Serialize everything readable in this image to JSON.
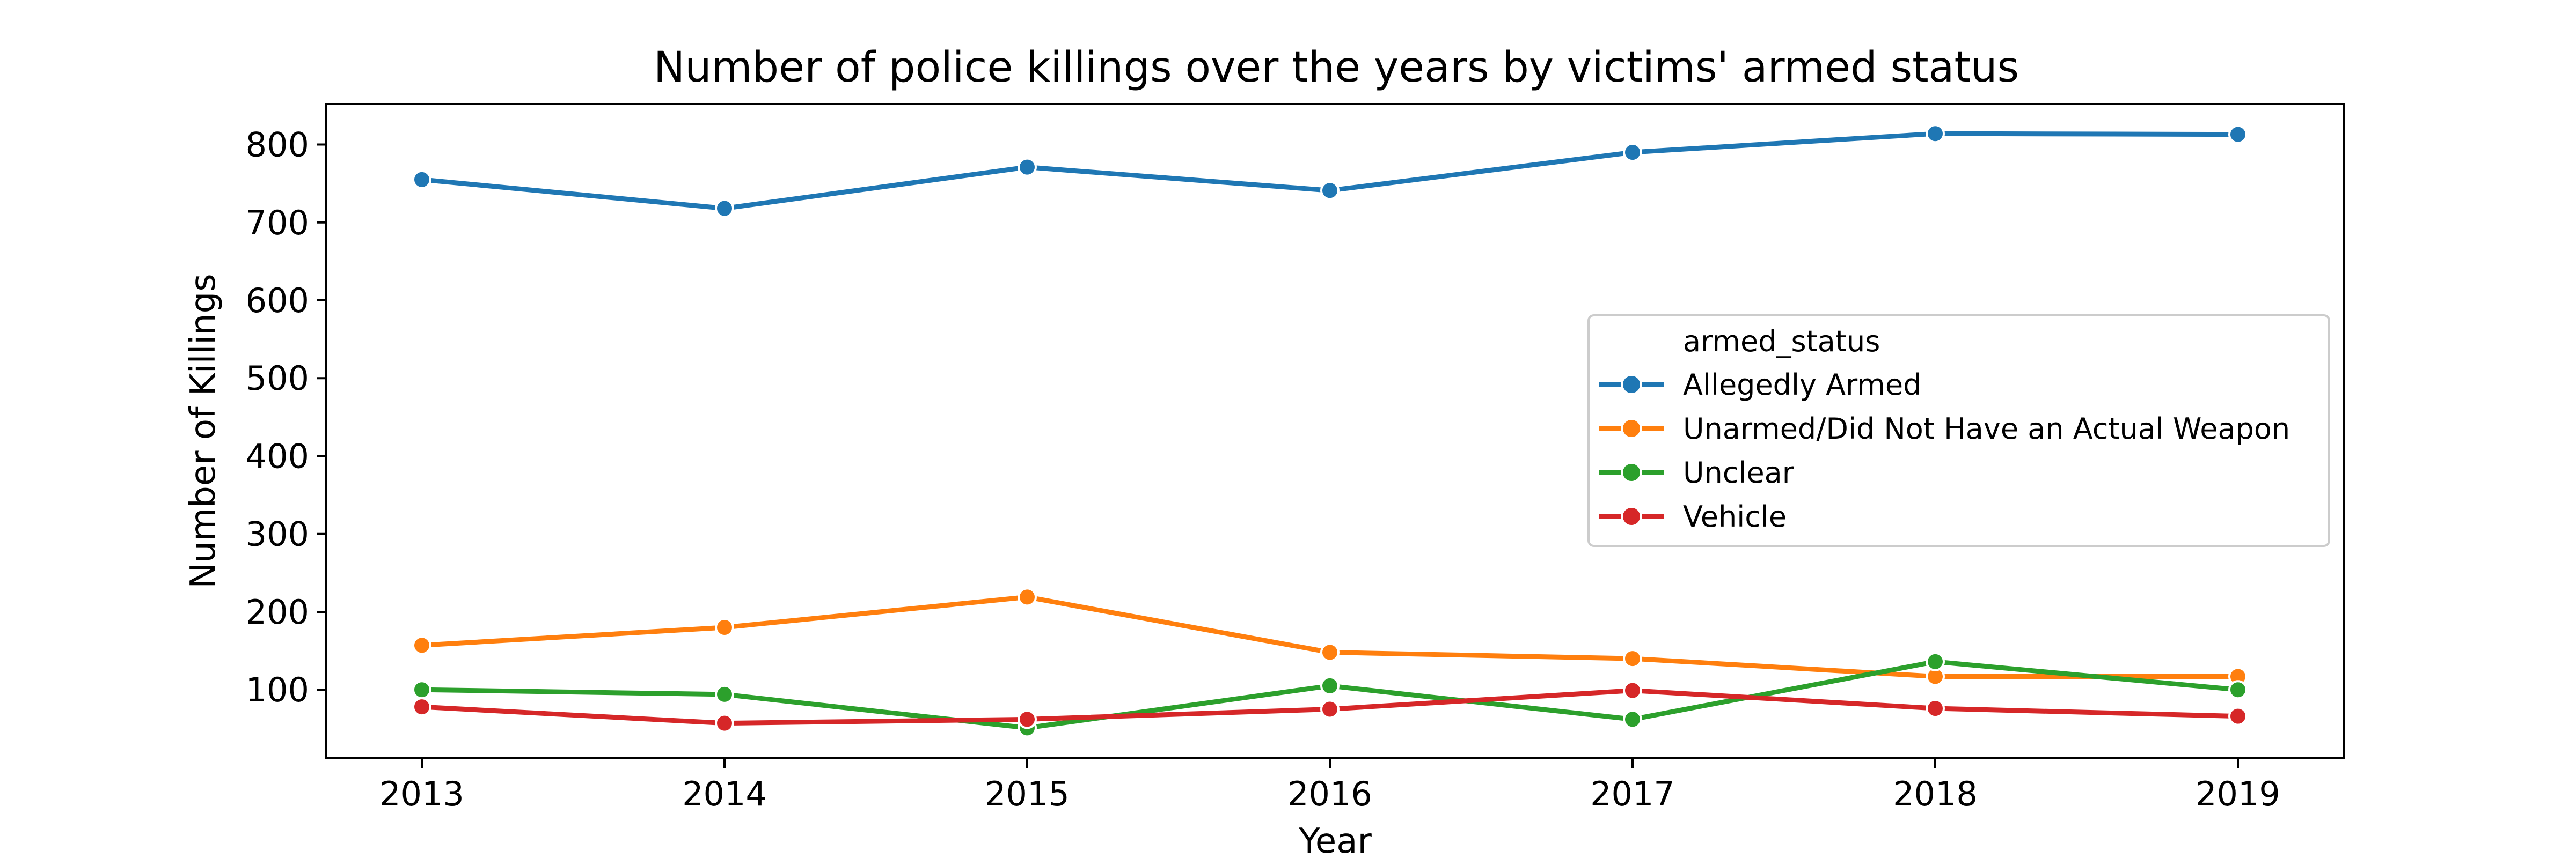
{
  "chart_data": {
    "type": "line",
    "title": "Number of police killings over the years by victims' armed status",
    "xlabel": "Year",
    "ylabel": "Number of Killings",
    "x": [
      2013,
      2014,
      2015,
      2016,
      2017,
      2018,
      2019
    ],
    "x_ticks": [
      "2013",
      "2014",
      "2015",
      "2016",
      "2017",
      "2018",
      "2019"
    ],
    "ylim": [
      12,
      852
    ],
    "y_ticks": [
      100,
      200,
      300,
      400,
      500,
      600,
      700,
      800
    ],
    "y_tick_labels": [
      "100",
      "200",
      "300",
      "400",
      "500",
      "600",
      "700",
      "800"
    ],
    "grid": false,
    "legend": {
      "title": "armed_status",
      "placement": "center-right"
    },
    "series": [
      {
        "name": "Allegedly Armed",
        "color": "#1f77b4",
        "values": [
          755,
          718,
          771,
          741,
          790,
          814,
          813
        ]
      },
      {
        "name": "Unarmed/Did Not Have an Actual Weapon",
        "color": "#ff7f0e",
        "values": [
          157,
          180,
          219,
          148,
          140,
          117,
          117
        ]
      },
      {
        "name": "Unclear",
        "color": "#2ca02c",
        "values": [
          100,
          94,
          51,
          105,
          62,
          136,
          100
        ]
      },
      {
        "name": "Vehicle",
        "color": "#d62728",
        "values": [
          78,
          57,
          62,
          75,
          99,
          76,
          66
        ]
      }
    ]
  }
}
